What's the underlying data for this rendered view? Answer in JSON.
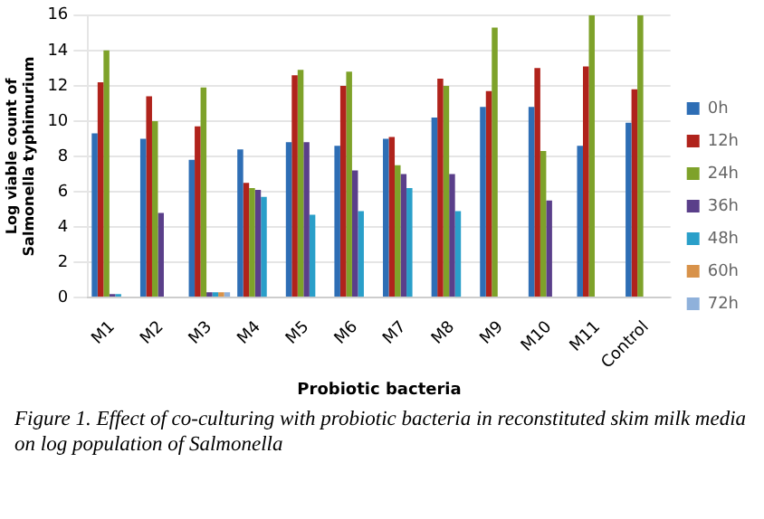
{
  "chart_data": {
    "type": "bar",
    "xlabel": "Probiotic bacteria",
    "ylabel": "Log viable count of Salmonella typhimurium",
    "categories": [
      "M1",
      "M2",
      "M3",
      "M4",
      "M5",
      "M6",
      "M7",
      "M8",
      "M9",
      "M10",
      "M11",
      "Control"
    ],
    "series": [
      {
        "name": "0h",
        "color": "#2e6eb5",
        "values": [
          9.3,
          9.0,
          7.8,
          8.4,
          8.8,
          8.6,
          9.0,
          10.2,
          10.8,
          10.8,
          8.6,
          9.9
        ]
      },
      {
        "name": "12h",
        "color": "#b0231c",
        "values": [
          12.2,
          11.4,
          9.7,
          6.5,
          12.6,
          12.0,
          9.1,
          12.4,
          11.7,
          13.0,
          13.1,
          11.8
        ]
      },
      {
        "name": "24h",
        "color": "#7ea22a",
        "values": [
          14.0,
          10.0,
          11.9,
          6.2,
          12.9,
          12.8,
          7.5,
          12.0,
          15.3,
          8.3,
          16.0,
          16.0
        ]
      },
      {
        "name": "36h",
        "color": "#5a3f8a",
        "values": [
          0.2,
          4.8,
          0.3,
          6.1,
          8.8,
          7.2,
          7.0,
          7.0,
          0,
          5.5,
          0,
          0
        ]
      },
      {
        "name": "48h",
        "color": "#2a9fc9",
        "values": [
          0.2,
          0,
          0.3,
          5.7,
          4.7,
          4.9,
          6.2,
          4.9,
          0,
          0,
          0,
          0
        ]
      },
      {
        "name": "60h",
        "color": "#d8924a",
        "values": [
          0,
          0,
          0.3,
          0,
          0,
          0,
          0,
          0,
          0,
          0,
          0,
          0
        ]
      },
      {
        "name": "72h",
        "color": "#8fb1db",
        "values": [
          0,
          0,
          0.3,
          0,
          0,
          0,
          0,
          0,
          0,
          0,
          0,
          0
        ]
      }
    ],
    "ylim": [
      0,
      16
    ],
    "yticks": [
      0,
      2,
      4,
      6,
      8,
      10,
      12,
      14,
      16
    ],
    "grid": "y",
    "legend": "right",
    "annotations": [
      "Figure 1. Effect of co-culturing with probiotic bacteria in reconstituted skim milk media on log population of Salmonella"
    ]
  }
}
